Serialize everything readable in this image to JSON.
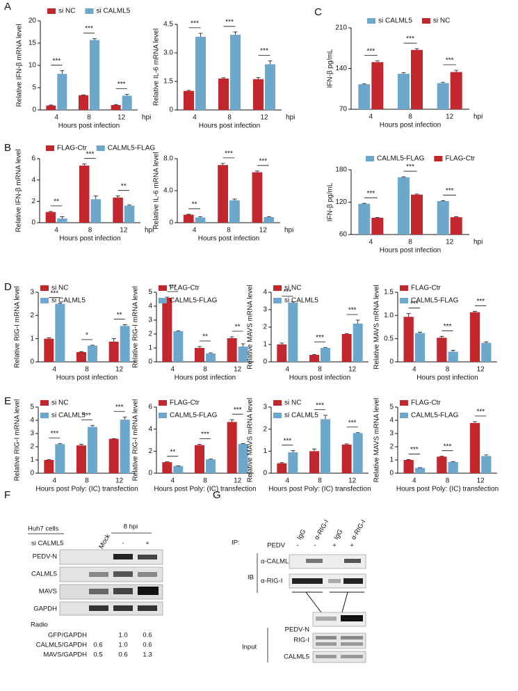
{
  "panel_labels": [
    "A",
    "B",
    "C",
    "D",
    "E",
    "F",
    "G"
  ],
  "chart_data": [
    {
      "type": "bar",
      "ylabel": "Relative IFN-β mRNA level",
      "xlabel": "Hours post infection",
      "x_unit": "hpi",
      "categories": [
        "4",
        "8",
        "12"
      ],
      "series": [
        {
          "name": "si NC",
          "color": "#c1272d",
          "values": [
            1.0,
            3.3,
            1.1
          ],
          "errors": [
            0.1,
            0.1,
            0.1
          ]
        },
        {
          "name": "si CALML5",
          "color": "#6ea7cc",
          "values": [
            8.1,
            15.7,
            3.2
          ],
          "errors": [
            0.7,
            0.3,
            0.3
          ]
        }
      ],
      "significance": [
        "***",
        "***",
        "***"
      ],
      "ylim": [
        0,
        20
      ],
      "yticks": [
        0,
        5,
        10,
        15,
        20
      ]
    },
    {
      "type": "bar",
      "ylabel": "Relative IL-6 mRNA level",
      "xlabel": "Hours post infection",
      "x_unit": "hpi",
      "categories": [
        "4",
        "8",
        "12"
      ],
      "series": [
        {
          "color": "#c1272d",
          "values": [
            1.0,
            1.65,
            1.62
          ],
          "errors": [
            0.03,
            0.04,
            0.08
          ]
        },
        {
          "color": "#6ea7cc",
          "values": [
            3.85,
            3.95,
            2.4
          ],
          "errors": [
            0.18,
            0.15,
            0.18
          ]
        }
      ],
      "significance": [
        "***",
        "***",
        "***"
      ],
      "ylim": [
        0,
        4.5
      ],
      "yticks": [
        0,
        1.5,
        {
          "value": 3,
          "label": "3.0"
        },
        4.5
      ]
    },
    {
      "type": "bar",
      "ylabel": "IFN-β  pg/mL",
      "xlabel": "Hours post infection",
      "x_unit": "hpi",
      "categories": [
        "4",
        "8",
        "12"
      ],
      "series": [
        {
          "name": "si CALML5",
          "color": "#6ea7cc",
          "values": [
            113,
            131,
            115
          ],
          "errors": [
            1,
            2,
            1.5
          ]
        },
        {
          "name": "si NC",
          "color": "#c1272d",
          "values": [
            151,
            172,
            134
          ],
          "errors": [
            2,
            2,
            3
          ]
        }
      ],
      "significance": [
        "***",
        "***",
        "***"
      ],
      "ylim": [
        70,
        210
      ],
      "yticks": [
        70,
        140,
        210
      ]
    },
    {
      "type": "bar",
      "ylabel": "Relative IFN-β mRNA level",
      "xlabel": "Hours post infection",
      "x_unit": "hpi",
      "categories": [
        "4",
        "8",
        "12"
      ],
      "series": [
        {
          "name": "FLAG-Ctr",
          "color": "#c1272d",
          "values": [
            1.0,
            5.35,
            2.35
          ],
          "errors": [
            0.05,
            0.15,
            0.15
          ]
        },
        {
          "name": "CALML5-FLAG",
          "color": "#6ea7cc",
          "values": [
            0.4,
            2.2,
            1.6
          ],
          "errors": [
            0.15,
            0.3,
            0.07
          ]
        }
      ],
      "significance": [
        "**",
        "***",
        "**"
      ],
      "ylim": [
        0,
        6
      ],
      "yticks": [
        0,
        2,
        4,
        6
      ]
    },
    {
      "type": "bar",
      "ylabel": "Relative IL-6 mRNA level",
      "xlabel": "Hours post infection",
      "x_unit": "hpi",
      "categories": [
        "4",
        "8",
        "12"
      ],
      "series": [
        {
          "color": "#c1272d",
          "values": [
            1.0,
            7.2,
            6.3
          ],
          "errors": [
            0.05,
            0.2,
            0.15
          ]
        },
        {
          "color": "#6ea7cc",
          "values": [
            0.65,
            2.8,
            0.7
          ],
          "errors": [
            0.1,
            0.15,
            0.04
          ]
        }
      ],
      "significance": [
        "**",
        "***",
        "***"
      ],
      "ylim": [
        0,
        8
      ],
      "yticks": [
        0,
        {
          "value": 4,
          "label": "4.0"
        },
        {
          "value": 8,
          "label": "8.0"
        }
      ]
    },
    {
      "type": "bar",
      "ylabel": "IFN-β  pg/mL",
      "xlabel": "Hours post infection",
      "x_unit": "hpi",
      "categories": [
        "4",
        "8",
        "12"
      ],
      "series": [
        {
          "name": "CALML5-FLAG",
          "color": "#6ea7cc",
          "values": [
            117,
            166,
            122
          ],
          "errors": [
            0.8,
            1,
            0.8
          ]
        },
        {
          "name": "FLAG-Ctr",
          "color": "#c1272d",
          "values": [
            91,
            134,
            92
          ],
          "errors": [
            0.8,
            1,
            0.8
          ]
        }
      ],
      "significance": [
        "***",
        "***",
        "***"
      ],
      "ylim": [
        60,
        180
      ],
      "yticks": [
        60,
        120,
        180
      ]
    },
    {
      "type": "bar",
      "ylabel": "Relative RIG-I mRNA level",
      "xlabel": "Hours post infection",
      "categories": [
        "4",
        "8",
        "12"
      ],
      "series": [
        {
          "name": "si NC",
          "color": "#c1272d",
          "values": [
            1.0,
            0.42,
            0.87
          ],
          "errors": [
            0.04,
            0.02,
            0.13
          ]
        },
        {
          "name": "si CALML5",
          "color": "#6ea7cc",
          "values": [
            2.5,
            0.7,
            1.55
          ],
          "errors": [
            0.03,
            0.02,
            0.05
          ]
        }
      ],
      "significance": [
        "***",
        "*",
        "**"
      ],
      "ylim": [
        0,
        3
      ],
      "yticks": [
        0,
        1,
        2,
        3
      ]
    },
    {
      "type": "bar",
      "ylabel": "Relative RIG-I mRNA level",
      "xlabel": "Hours post infection",
      "categories": [
        "4",
        "8",
        "12"
      ],
      "series": [
        {
          "name": "FLAG-Ctr",
          "color": "#c1272d",
          "values": [
            4.6,
            1.0,
            1.7
          ],
          "errors": [
            0.05,
            0.1,
            0.1
          ]
        },
        {
          "name": "CALML5-FLAG",
          "color": "#6ea7cc",
          "values": [
            2.2,
            0.6,
            1.1
          ],
          "errors": [
            0.03,
            0.05,
            0.2
          ]
        }
      ],
      "significance": [
        "***",
        "**",
        "**"
      ],
      "ylim": [
        0,
        5
      ],
      "yticks": [
        0,
        1,
        2,
        3,
        4,
        5
      ]
    },
    {
      "type": "bar",
      "ylabel": "Relative MAVS mRNA level",
      "xlabel": "Hours post infection",
      "categories": [
        "4",
        "8",
        "12"
      ],
      "series": [
        {
          "name": "si NC",
          "color": "#c1272d",
          "values": [
            1.0,
            0.4,
            1.6
          ],
          "errors": [
            0.08,
            0.02,
            0.03
          ]
        },
        {
          "name": "si CALML5",
          "color": "#6ea7cc",
          "values": [
            3.4,
            0.8,
            2.2
          ],
          "errors": [
            0.05,
            0.03,
            0.2
          ]
        }
      ],
      "significance": [
        "***",
        "***",
        "***"
      ],
      "ylim": [
        0,
        4
      ],
      "yticks": [
        0,
        1,
        2,
        3,
        4
      ]
    },
    {
      "type": "bar",
      "ylabel": "Relative MAVS mRNA level",
      "xlabel": "Hours post infection",
      "categories": [
        "4",
        "8",
        "12"
      ],
      "series": [
        {
          "name": "FLAG-Ctr",
          "color": "#c1272d",
          "values": [
            0.97,
            0.52,
            1.07
          ],
          "errors": [
            0.07,
            0.03,
            0.02
          ]
        },
        {
          "name": "CALML5-FLAG",
          "color": "#6ea7cc",
          "values": [
            0.62,
            0.22,
            0.41
          ],
          "errors": [
            0.02,
            0.03,
            0.02
          ]
        }
      ],
      "significance": [
        "***",
        "***",
        "***"
      ],
      "ylim": [
        0,
        1.5
      ],
      "yticks": [
        0,
        0.5,
        {
          "value": 1,
          "label": "1.0"
        },
        1.5
      ]
    },
    {
      "type": "bar",
      "ylabel": "Relative RIG-I mRNA level",
      "xlabel": "Hours post Poly: (IC) transfection",
      "categories": [
        "4",
        "8",
        "12"
      ],
      "series": [
        {
          "name": "si NC",
          "color": "#c1272d",
          "values": [
            1.0,
            2.1,
            2.6
          ],
          "errors": [
            0.02,
            0.08,
            0.02
          ]
        },
        {
          "name": "si CALML5",
          "color": "#6ea7cc",
          "values": [
            2.2,
            3.5,
            4.05
          ],
          "errors": [
            0.05,
            0.12,
            0.2
          ]
        }
      ],
      "significance": [
        "***",
        "***",
        "***"
      ],
      "ylim": [
        0,
        5
      ],
      "yticks": [
        0,
        1,
        2,
        3,
        4,
        5
      ]
    },
    {
      "type": "bar",
      "ylabel": "Relative RIG-I mRNA level",
      "xlabel": "Hours post Poly: (IC) transfection",
      "categories": [
        "4",
        "8",
        "12"
      ],
      "series": [
        {
          "name": "FLAG-Ctr",
          "color": "#c1272d",
          "values": [
            1.0,
            2.55,
            4.65
          ],
          "errors": [
            0.03,
            0.08,
            0.2
          ]
        },
        {
          "name": "CALML5-FLAG",
          "color": "#6ea7cc",
          "values": [
            0.65,
            1.25,
            2.65
          ],
          "errors": [
            0.02,
            0.03,
            0.03
          ]
        }
      ],
      "significance": [
        "**",
        "***",
        "***"
      ],
      "ylim": [
        0,
        6
      ],
      "yticks": [
        0,
        2,
        4,
        6
      ]
    },
    {
      "type": "bar",
      "ylabel": "Relative MAVS mRNA level",
      "xlabel": "Hours post Poly: (IC) transfection",
      "categories": [
        "4",
        "8",
        "12"
      ],
      "series": [
        {
          "name": "si NC",
          "color": "#c1272d",
          "values": [
            0.45,
            1.0,
            1.3
          ],
          "errors": [
            0.03,
            0.1,
            0.03
          ]
        },
        {
          "name": "si CALML5",
          "color": "#6ea7cc",
          "values": [
            0.95,
            2.45,
            1.82
          ],
          "errors": [
            0.07,
            0.18,
            0.02
          ]
        }
      ],
      "significance": [
        "***",
        "***",
        "***"
      ],
      "ylim": [
        0,
        3
      ],
      "yticks": [
        0,
        1,
        2,
        3
      ]
    },
    {
      "type": "bar",
      "ylabel": "Relative MAVS mRNA level",
      "xlabel": "Hours post Poly: (IC) transfection",
      "categories": [
        "4",
        "8",
        "12"
      ],
      "series": [
        {
          "name": "FLAG-Ctr",
          "color": "#c1272d",
          "values": [
            1.0,
            1.25,
            3.8
          ],
          "errors": [
            0.03,
            0.03,
            0.1
          ]
        },
        {
          "name": "CALML5-FLAG",
          "color": "#6ea7cc",
          "values": [
            0.4,
            0.85,
            1.3
          ],
          "errors": [
            0.02,
            0.03,
            0.08
          ]
        }
      ],
      "significance": [
        "***",
        "***",
        "***"
      ],
      "ylim": [
        0,
        5
      ],
      "yticks": [
        0,
        1,
        2,
        3,
        4,
        5
      ]
    }
  ],
  "blot_f": {
    "cell_line": "Huh7 cells",
    "timepoint": "8 hpi",
    "treatment": "si CALML5",
    "lanes": [
      "Mock",
      "-",
      "+"
    ],
    "bands": [
      "PEDV-N",
      "CALML5",
      "MAVS",
      "GAPDH"
    ],
    "ratio_title": "Radio",
    "ratios": [
      {
        "label": "GFP/GAPDH",
        "values": [
          "1.0",
          "0.6"
        ]
      },
      {
        "label": "CALML5/GAPDH",
        "values": [
          "0.6",
          "1.0",
          "0.6"
        ]
      },
      {
        "label": "MAVS/GAPDH",
        "values": [
          "0.5",
          "0.6",
          "1.3"
        ]
      }
    ]
  },
  "blot_g": {
    "ip_label": "IP:",
    "lanes": [
      "IgG",
      "α-RIG-I",
      "IgG",
      "α-RIG-I"
    ],
    "pedv_label": "PEDV",
    "pedv": [
      "-",
      "-",
      "+",
      "+"
    ],
    "ib_label": "IB",
    "ib_bands": [
      "α-CALML5",
      "α-RIG-I"
    ],
    "input_label": "Input",
    "input_bands": [
      "PEDV-N",
      "RIG-I",
      "CALML5"
    ]
  }
}
